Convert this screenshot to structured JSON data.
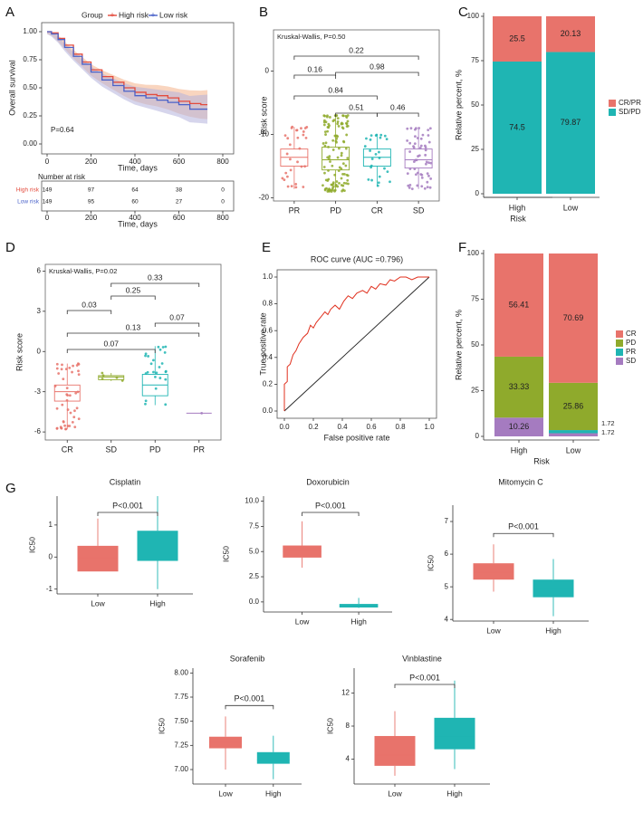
{
  "colors": {
    "red": "#E8736B",
    "teal": "#1FB5B3",
    "green": "#8FAA2C",
    "purple": "#A57BC0",
    "survival_red": "#E34B3D",
    "survival_blue": "#4A62C9",
    "band_red": "#F4B28A",
    "band_blue": "#B5B3DD"
  },
  "panels": {
    "A": {
      "letter": "A",
      "legend_group": "Group",
      "legend_high": "High risk",
      "legend_low": "Low risk",
      "ylabel": "Overall survival",
      "xlabel": "Time, days",
      "pvalue": "P=0.64",
      "risk_table_title": "Number at risk",
      "risk_table_xlabel": "Time, days",
      "risk_rows": [
        {
          "label": "High risk",
          "values": [
            "149",
            "97",
            "64",
            "38",
            "0"
          ]
        },
        {
          "label": "Low risk",
          "values": [
            "149",
            "95",
            "60",
            "27",
            "0"
          ]
        }
      ],
      "yticks": [
        "0.00",
        "0.25",
        "0.50",
        "0.75",
        "1.00"
      ],
      "xticks": [
        "0",
        "200",
        "400",
        "600",
        "800"
      ]
    },
    "B": {
      "letter": "B"
    },
    "C": {
      "letter": "C"
    },
    "D": {
      "letter": "D"
    },
    "E": {
      "letter": "E"
    },
    "F": {
      "letter": "F"
    },
    "G": {
      "letter": "G"
    }
  },
  "chart_data": [
    {
      "id": "A",
      "type": "line",
      "title": "",
      "xlabel": "Time, days",
      "ylabel": "Overall survival",
      "xlim": [
        0,
        800
      ],
      "ylim": [
        0,
        1
      ],
      "series": [
        {
          "name": "High risk",
          "x": [
            0,
            20,
            50,
            80,
            120,
            160,
            200,
            250,
            300,
            350,
            400,
            450,
            500,
            550,
            600,
            650,
            700,
            730
          ],
          "y": [
            1.0,
            0.99,
            0.94,
            0.88,
            0.8,
            0.73,
            0.66,
            0.6,
            0.55,
            0.5,
            0.46,
            0.44,
            0.43,
            0.41,
            0.38,
            0.36,
            0.35,
            0.35
          ]
        },
        {
          "name": "Low risk",
          "x": [
            0,
            20,
            50,
            80,
            120,
            160,
            200,
            250,
            300,
            350,
            400,
            450,
            500,
            550,
            600,
            650,
            700,
            730
          ],
          "y": [
            1.0,
            0.98,
            0.93,
            0.86,
            0.78,
            0.71,
            0.64,
            0.57,
            0.52,
            0.47,
            0.43,
            0.41,
            0.39,
            0.37,
            0.35,
            0.31,
            0.31,
            0.31
          ]
        }
      ],
      "annotation": "P=0.64"
    },
    {
      "id": "B",
      "type": "box",
      "test_label": "Kruskal-Wallis, P=0.50",
      "xlabel": "",
      "ylabel": "Risk score",
      "ylim": [
        -20.5,
        6.5
      ],
      "yticks": [
        -20,
        -10,
        0
      ],
      "categories": [
        "PR",
        "PD",
        "CR",
        "SD"
      ],
      "colors": [
        "#E8736B",
        "#8FAA2C",
        "#1FB5B3",
        "#A57BC0"
      ],
      "boxes": [
        {
          "name": "PR",
          "min": -18.6,
          "q1": -15.0,
          "median": -13.6,
          "q3": -12.3,
          "max": -8.8,
          "n": 30
        },
        {
          "name": "PD",
          "min": -19.0,
          "q1": -15.6,
          "median": -14.0,
          "q3": -12.0,
          "max": -7.0,
          "n": 120
        },
        {
          "name": "CR",
          "min": -18.2,
          "q1": -15.0,
          "median": -13.6,
          "q3": -12.3,
          "max": -10.0,
          "n": 25
        },
        {
          "name": "SD",
          "min": -18.6,
          "q1": -15.3,
          "median": -14.0,
          "q3": -12.3,
          "max": -9.0,
          "n": 55
        }
      ],
      "comparisons": [
        {
          "from": "PR",
          "to": "SD",
          "p": "0.22"
        },
        {
          "from": "PD",
          "to": "SD",
          "p": "0.98"
        },
        {
          "from": "PR",
          "to": "PD",
          "p": "0.16"
        },
        {
          "from": "PR",
          "to": "CR",
          "p": "0.84"
        },
        {
          "from": "PD",
          "to": "CR",
          "p": "0.51"
        },
        {
          "from": "CR",
          "to": "SD",
          "p": "0.46"
        }
      ]
    },
    {
      "id": "C",
      "type": "bar",
      "stacked": true,
      "xlabel": "Risk",
      "ylabel": "Relative percent, %",
      "ylim": [
        0,
        100
      ],
      "yticks": [
        0,
        25,
        50,
        75,
        100
      ],
      "categories": [
        "High",
        "Low"
      ],
      "series": [
        {
          "name": "SD/PD",
          "color": "#1FB5B3",
          "values": [
            74.5,
            79.87
          ],
          "labels": [
            "74.5",
            "79.87"
          ]
        },
        {
          "name": "CR/PR",
          "color": "#E8736B",
          "values": [
            25.5,
            20.13
          ],
          "labels": [
            "25.5",
            "20.13"
          ]
        }
      ],
      "legend": [
        "CR/PR",
        "SD/PD"
      ]
    },
    {
      "id": "D",
      "type": "box",
      "test_label": "Kruskal-Wallis, P=0.02",
      "xlabel": "",
      "ylabel": "Risk score",
      "ylim": [
        -6.6,
        6.5
      ],
      "yticks": [
        -6,
        -3,
        0,
        3,
        6
      ],
      "categories": [
        "CR",
        "SD",
        "PD",
        "PR"
      ],
      "colors": [
        "#E8736B",
        "#8FAA2C",
        "#1FB5B3",
        "#A57BC0"
      ],
      "boxes": [
        {
          "name": "CR",
          "min": -5.8,
          "q1": -3.7,
          "median": -3.0,
          "q3": -2.5,
          "max": -0.9,
          "n": 45
        },
        {
          "name": "SD",
          "min": -2.2,
          "q1": -2.1,
          "median": -1.9,
          "q3": -1.8,
          "max": -1.6,
          "n": 5
        },
        {
          "name": "PD",
          "min": -4.0,
          "q1": -3.3,
          "median": -2.5,
          "q3": -1.7,
          "max": 0.4,
          "n": 25
        },
        {
          "name": "PR",
          "min": -4.6,
          "q1": -4.6,
          "median": -4.6,
          "q3": -4.6,
          "max": -4.6,
          "n": 1
        }
      ],
      "comparisons": [
        {
          "from": "SD",
          "to": "PR",
          "p": "0.33"
        },
        {
          "from": "SD",
          "to": "PD",
          "p": "0.25"
        },
        {
          "from": "CR",
          "to": "SD",
          "p": "0.03"
        },
        {
          "from": "PD",
          "to": "PR",
          "p": "0.07"
        },
        {
          "from": "CR",
          "to": "PR",
          "p": "0.13"
        },
        {
          "from": "CR",
          "to": "PD",
          "p": "0.07"
        }
      ]
    },
    {
      "id": "E",
      "type": "line",
      "title": "ROC curve (AUC =0.796)",
      "xlabel": "False positive rate",
      "ylabel": "True positive rate",
      "xlim": [
        0,
        1
      ],
      "ylim": [
        0,
        1
      ],
      "ticks": [
        "0.0",
        "0.2",
        "0.4",
        "0.6",
        "0.8",
        "1.0"
      ],
      "series": [
        {
          "name": "ROC",
          "x": [
            0,
            0,
            0.02,
            0.02,
            0.04,
            0.06,
            0.08,
            0.1,
            0.13,
            0.16,
            0.18,
            0.2,
            0.22,
            0.25,
            0.28,
            0.3,
            0.32,
            0.35,
            0.38,
            0.41,
            0.44,
            0.47,
            0.5,
            0.54,
            0.57,
            0.6,
            0.63,
            0.66,
            0.7,
            0.73,
            0.76,
            0.8,
            0.84,
            0.88,
            0.92,
            0.96,
            1.0
          ],
          "y": [
            0,
            0.2,
            0.22,
            0.33,
            0.35,
            0.42,
            0.45,
            0.5,
            0.55,
            0.58,
            0.64,
            0.62,
            0.66,
            0.7,
            0.74,
            0.72,
            0.76,
            0.79,
            0.76,
            0.82,
            0.86,
            0.84,
            0.88,
            0.9,
            0.88,
            0.93,
            0.91,
            0.95,
            0.94,
            0.98,
            0.97,
            1.0,
            1.0,
            0.98,
            1.0,
            1.0,
            1.0
          ]
        },
        {
          "name": "Reference",
          "x": [
            0,
            1
          ],
          "y": [
            0,
            1
          ]
        }
      ]
    },
    {
      "id": "F",
      "type": "bar",
      "stacked": true,
      "xlabel": "Risk",
      "ylabel": "Relative percent, %",
      "ylim": [
        0,
        100
      ],
      "yticks": [
        0,
        25,
        50,
        75,
        100
      ],
      "categories": [
        "High",
        "Low"
      ],
      "series": [
        {
          "name": "SD",
          "color": "#A57BC0",
          "values": [
            10.26,
            1.72
          ],
          "labels": [
            "10.26",
            "1.72"
          ]
        },
        {
          "name": "PR",
          "color": "#1FB5B3",
          "values": [
            0,
            1.72
          ],
          "labels": [
            "",
            "1.72"
          ]
        },
        {
          "name": "PD",
          "color": "#8FAA2C",
          "values": [
            33.33,
            25.86
          ],
          "labels": [
            "33.33",
            "25.86"
          ]
        },
        {
          "name": "CR",
          "color": "#E8736B",
          "values": [
            56.41,
            70.69
          ],
          "labels": [
            "56.41",
            "70.69"
          ]
        }
      ],
      "legend": [
        "CR",
        "PD",
        "PR",
        "SD"
      ]
    },
    {
      "id": "G1",
      "type": "box",
      "title": "Cisplatin",
      "ylabel": "IC50",
      "pvalue": "P<0.001",
      "categories": [
        "Low",
        "High"
      ],
      "ylim": [
        -1.15,
        1.9
      ],
      "yticks": [
        -1,
        0,
        1
      ],
      "boxes": [
        {
          "name": "Low",
          "min": -0.45,
          "q1": -0.45,
          "median": -0.02,
          "q3": 0.35,
          "max": 1.2,
          "color": "#E8736B"
        },
        {
          "name": "High",
          "min": -1.0,
          "q1": -0.12,
          "median": 0.1,
          "q3": 0.82,
          "max": 1.9,
          "color": "#1FB5B3"
        }
      ]
    },
    {
      "id": "G2",
      "type": "box",
      "title": "Doxorubicin",
      "ylabel": "IC50",
      "pvalue": "P<0.001",
      "categories": [
        "Low",
        "High"
      ],
      "ylim": [
        -1.0,
        10.5
      ],
      "yticks": [
        0.0,
        2.5,
        5.0,
        7.5,
        10.0
      ],
      "boxes": [
        {
          "name": "Low",
          "min": 3.4,
          "q1": 4.4,
          "median": 5.0,
          "q3": 5.6,
          "max": 8.0,
          "color": "#E8736B"
        },
        {
          "name": "High",
          "min": -0.6,
          "q1": -0.55,
          "median": -0.45,
          "q3": -0.2,
          "max": 0.4,
          "color": "#1FB5B3"
        }
      ]
    },
    {
      "id": "G3",
      "type": "box",
      "title": "Mitomycin C",
      "ylabel": "IC50",
      "pvalue": "P<0.001",
      "categories": [
        "Low",
        "High"
      ],
      "ylim": [
        3.95,
        7.5
      ],
      "yticks": [
        4,
        5,
        6,
        7
      ],
      "boxes": [
        {
          "name": "Low",
          "min": 4.85,
          "q1": 5.22,
          "median": 5.45,
          "q3": 5.72,
          "max": 6.3,
          "color": "#E8736B"
        },
        {
          "name": "High",
          "min": 4.1,
          "q1": 4.68,
          "median": 4.93,
          "q3": 5.22,
          "max": 5.85,
          "color": "#1FB5B3"
        }
      ]
    },
    {
      "id": "G4",
      "type": "box",
      "title": "Sorafenib",
      "ylabel": "IC50",
      "pvalue": "P<0.001",
      "categories": [
        "Low",
        "High"
      ],
      "ylim": [
        6.85,
        8.05
      ],
      "yticks": [
        7.0,
        7.25,
        7.5,
        7.75,
        8.0
      ],
      "boxes": [
        {
          "name": "Low",
          "min": 7.0,
          "q1": 7.22,
          "median": 7.28,
          "q3": 7.34,
          "max": 7.55,
          "color": "#E8736B"
        },
        {
          "name": "High",
          "min": 6.9,
          "q1": 7.06,
          "median": 7.1,
          "q3": 7.18,
          "max": 7.35,
          "color": "#1FB5B3"
        }
      ]
    },
    {
      "id": "G5",
      "type": "box",
      "title": "Vinblastine",
      "ylabel": "IC50",
      "pvalue": "P<0.001",
      "categories": [
        "Low",
        "High"
      ],
      "ylim": [
        1.0,
        15.0
      ],
      "yticks": [
        4,
        8,
        12
      ],
      "boxes": [
        {
          "name": "Low",
          "min": 2.0,
          "q1": 3.2,
          "median": 4.5,
          "q3": 6.8,
          "max": 9.8,
          "color": "#E8736B"
        },
        {
          "name": "High",
          "min": 2.8,
          "q1": 5.2,
          "median": 6.8,
          "q3": 9.0,
          "max": 13.5,
          "color": "#1FB5B3"
        }
      ]
    }
  ]
}
